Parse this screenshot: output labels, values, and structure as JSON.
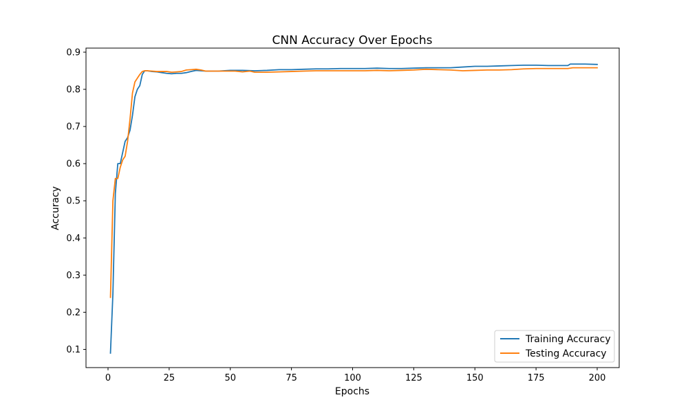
{
  "chart_data": {
    "type": "line",
    "title": "CNN Accuracy Over Epochs",
    "xlabel": "Epochs",
    "ylabel": "Accuracy",
    "xlim": [
      -9,
      209
    ],
    "ylim": [
      0.051,
      0.911
    ],
    "xticks": [
      0,
      25,
      50,
      75,
      100,
      125,
      150,
      175,
      200
    ],
    "yticks": [
      0.1,
      0.2,
      0.3,
      0.4,
      0.5,
      0.6,
      0.7,
      0.8,
      0.9
    ],
    "grid": false,
    "legend_position": "lower-right",
    "series": [
      {
        "name": "Training Accuracy",
        "color": "#1f77b4",
        "points": [
          [
            1,
            0.09
          ],
          [
            2,
            0.25
          ],
          [
            3,
            0.52
          ],
          [
            4,
            0.6
          ],
          [
            5,
            0.6
          ],
          [
            6,
            0.63
          ],
          [
            7,
            0.66
          ],
          [
            8,
            0.67
          ],
          [
            9,
            0.69
          ],
          [
            10,
            0.73
          ],
          [
            11,
            0.78
          ],
          [
            12,
            0.8
          ],
          [
            13,
            0.81
          ],
          [
            14,
            0.84
          ],
          [
            15,
            0.85
          ],
          [
            16,
            0.85
          ],
          [
            18,
            0.848
          ],
          [
            20,
            0.847
          ],
          [
            22,
            0.845
          ],
          [
            24,
            0.843
          ],
          [
            26,
            0.842
          ],
          [
            28,
            0.843
          ],
          [
            30,
            0.843
          ],
          [
            32,
            0.845
          ],
          [
            34,
            0.848
          ],
          [
            36,
            0.851
          ],
          [
            38,
            0.85
          ],
          [
            40,
            0.849
          ],
          [
            45,
            0.849
          ],
          [
            50,
            0.851
          ],
          [
            55,
            0.851
          ],
          [
            60,
            0.85
          ],
          [
            65,
            0.851
          ],
          [
            70,
            0.853
          ],
          [
            75,
            0.853
          ],
          [
            80,
            0.854
          ],
          [
            85,
            0.855
          ],
          [
            90,
            0.855
          ],
          [
            95,
            0.856
          ],
          [
            100,
            0.856
          ],
          [
            105,
            0.856
          ],
          [
            110,
            0.857
          ],
          [
            115,
            0.856
          ],
          [
            120,
            0.856
          ],
          [
            125,
            0.857
          ],
          [
            130,
            0.858
          ],
          [
            135,
            0.858
          ],
          [
            140,
            0.858
          ],
          [
            145,
            0.86
          ],
          [
            150,
            0.862
          ],
          [
            155,
            0.862
          ],
          [
            160,
            0.863
          ],
          [
            165,
            0.864
          ],
          [
            170,
            0.865
          ],
          [
            175,
            0.865
          ],
          [
            180,
            0.864
          ],
          [
            185,
            0.864
          ],
          [
            188,
            0.864
          ],
          [
            189,
            0.868
          ],
          [
            195,
            0.868
          ],
          [
            200,
            0.867
          ]
        ]
      },
      {
        "name": "Testing Accuracy",
        "color": "#ff7f0e",
        "points": [
          [
            1,
            0.24
          ],
          [
            2,
            0.5
          ],
          [
            3,
            0.56
          ],
          [
            4,
            0.56
          ],
          [
            5,
            0.59
          ],
          [
            6,
            0.61
          ],
          [
            7,
            0.62
          ],
          [
            8,
            0.66
          ],
          [
            9,
            0.72
          ],
          [
            10,
            0.79
          ],
          [
            11,
            0.82
          ],
          [
            12,
            0.83
          ],
          [
            13,
            0.84
          ],
          [
            14,
            0.848
          ],
          [
            15,
            0.85
          ],
          [
            16,
            0.85
          ],
          [
            18,
            0.849
          ],
          [
            20,
            0.848
          ],
          [
            22,
            0.848
          ],
          [
            24,
            0.848
          ],
          [
            26,
            0.846
          ],
          [
            28,
            0.847
          ],
          [
            30,
            0.848
          ],
          [
            32,
            0.852
          ],
          [
            34,
            0.853
          ],
          [
            36,
            0.854
          ],
          [
            38,
            0.852
          ],
          [
            40,
            0.849
          ],
          [
            45,
            0.849
          ],
          [
            50,
            0.849
          ],
          [
            52,
            0.849
          ],
          [
            55,
            0.847
          ],
          [
            58,
            0.849
          ],
          [
            60,
            0.846
          ],
          [
            65,
            0.846
          ],
          [
            70,
            0.847
          ],
          [
            75,
            0.848
          ],
          [
            80,
            0.849
          ],
          [
            85,
            0.85
          ],
          [
            90,
            0.85
          ],
          [
            95,
            0.85
          ],
          [
            100,
            0.85
          ],
          [
            105,
            0.85
          ],
          [
            110,
            0.851
          ],
          [
            115,
            0.85
          ],
          [
            120,
            0.851
          ],
          [
            125,
            0.852
          ],
          [
            130,
            0.854
          ],
          [
            135,
            0.853
          ],
          [
            140,
            0.852
          ],
          [
            145,
            0.85
          ],
          [
            150,
            0.851
          ],
          [
            155,
            0.852
          ],
          [
            160,
            0.852
          ],
          [
            165,
            0.853
          ],
          [
            170,
            0.855
          ],
          [
            175,
            0.856
          ],
          [
            180,
            0.856
          ],
          [
            185,
            0.856
          ],
          [
            188,
            0.856
          ],
          [
            190,
            0.858
          ],
          [
            195,
            0.858
          ],
          [
            200,
            0.858
          ]
        ]
      }
    ]
  }
}
